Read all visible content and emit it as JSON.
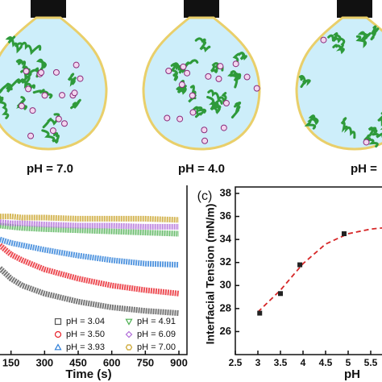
{
  "illustration": {
    "labels": [
      "pH = 7.0",
      "pH = 4.0",
      "pH ="
    ]
  },
  "chart_data": [
    {
      "type": "line",
      "xlabel": "Time (s)",
      "x": [
        100,
        150,
        200,
        300,
        450,
        600,
        750,
        900
      ],
      "xlim": [
        0,
        900
      ],
      "xticks": [
        150,
        300,
        450,
        600,
        750,
        900
      ],
      "ylim": [
        24,
        38
      ],
      "series": [
        {
          "name": "pH = 3.04",
          "color": "#555555",
          "marker": "square",
          "values": [
            31.5,
            30.6,
            30.0,
            29.3,
            28.6,
            28.1,
            27.8,
            27.6
          ]
        },
        {
          "name": "pH = 3.50",
          "color": "#e8222a",
          "marker": "circle",
          "values": [
            33.5,
            32.7,
            32.2,
            31.4,
            30.6,
            30.0,
            29.6,
            29.3
          ]
        },
        {
          "name": "pH = 3.93",
          "color": "#2e7fd8",
          "marker": "triangle",
          "values": [
            34.0,
            33.7,
            33.5,
            33.1,
            32.6,
            32.2,
            31.9,
            31.8
          ]
        },
        {
          "name": "pH = 4.91",
          "color": "#4caf50",
          "marker": "down-triangle",
          "values": [
            35.2,
            35.1,
            35.0,
            34.9,
            34.8,
            34.7,
            34.6,
            34.5
          ]
        },
        {
          "name": "pH = 6.09",
          "color": "#b06cd8",
          "marker": "diamond",
          "values": [
            35.5,
            35.4,
            35.4,
            35.3,
            35.2,
            35.2,
            35.1,
            35.1
          ]
        },
        {
          "name": "pH = 7.00",
          "color": "#c9a227",
          "marker": "hexagon",
          "values": [
            36.0,
            36.0,
            35.9,
            35.9,
            35.8,
            35.8,
            35.8,
            35.7
          ]
        }
      ]
    },
    {
      "type": "scatter",
      "panel_label": "(c)",
      "xlabel": "pH",
      "ylabel": "Interfacial Tension (mN/m)",
      "x": [
        3.04,
        3.5,
        3.93,
        4.91
      ],
      "values": [
        27.6,
        29.3,
        31.8,
        34.5
      ],
      "color": "#222222",
      "fit": {
        "x": [
          3.0,
          3.5,
          4.0,
          4.5,
          5.0,
          5.5,
          5.75
        ],
        "values": [
          27.7,
          29.6,
          31.9,
          33.6,
          34.5,
          34.9,
          35.0
        ],
        "color": "#d62728"
      },
      "xlim": [
        2.5,
        5.75
      ],
      "xticks": [
        2.5,
        3.0,
        3.5,
        4.0,
        4.5,
        5.0,
        5.5
      ],
      "ylim": [
        24,
        38
      ],
      "yticks": [
        26,
        28,
        30,
        32,
        34,
        36,
        38
      ]
    }
  ]
}
